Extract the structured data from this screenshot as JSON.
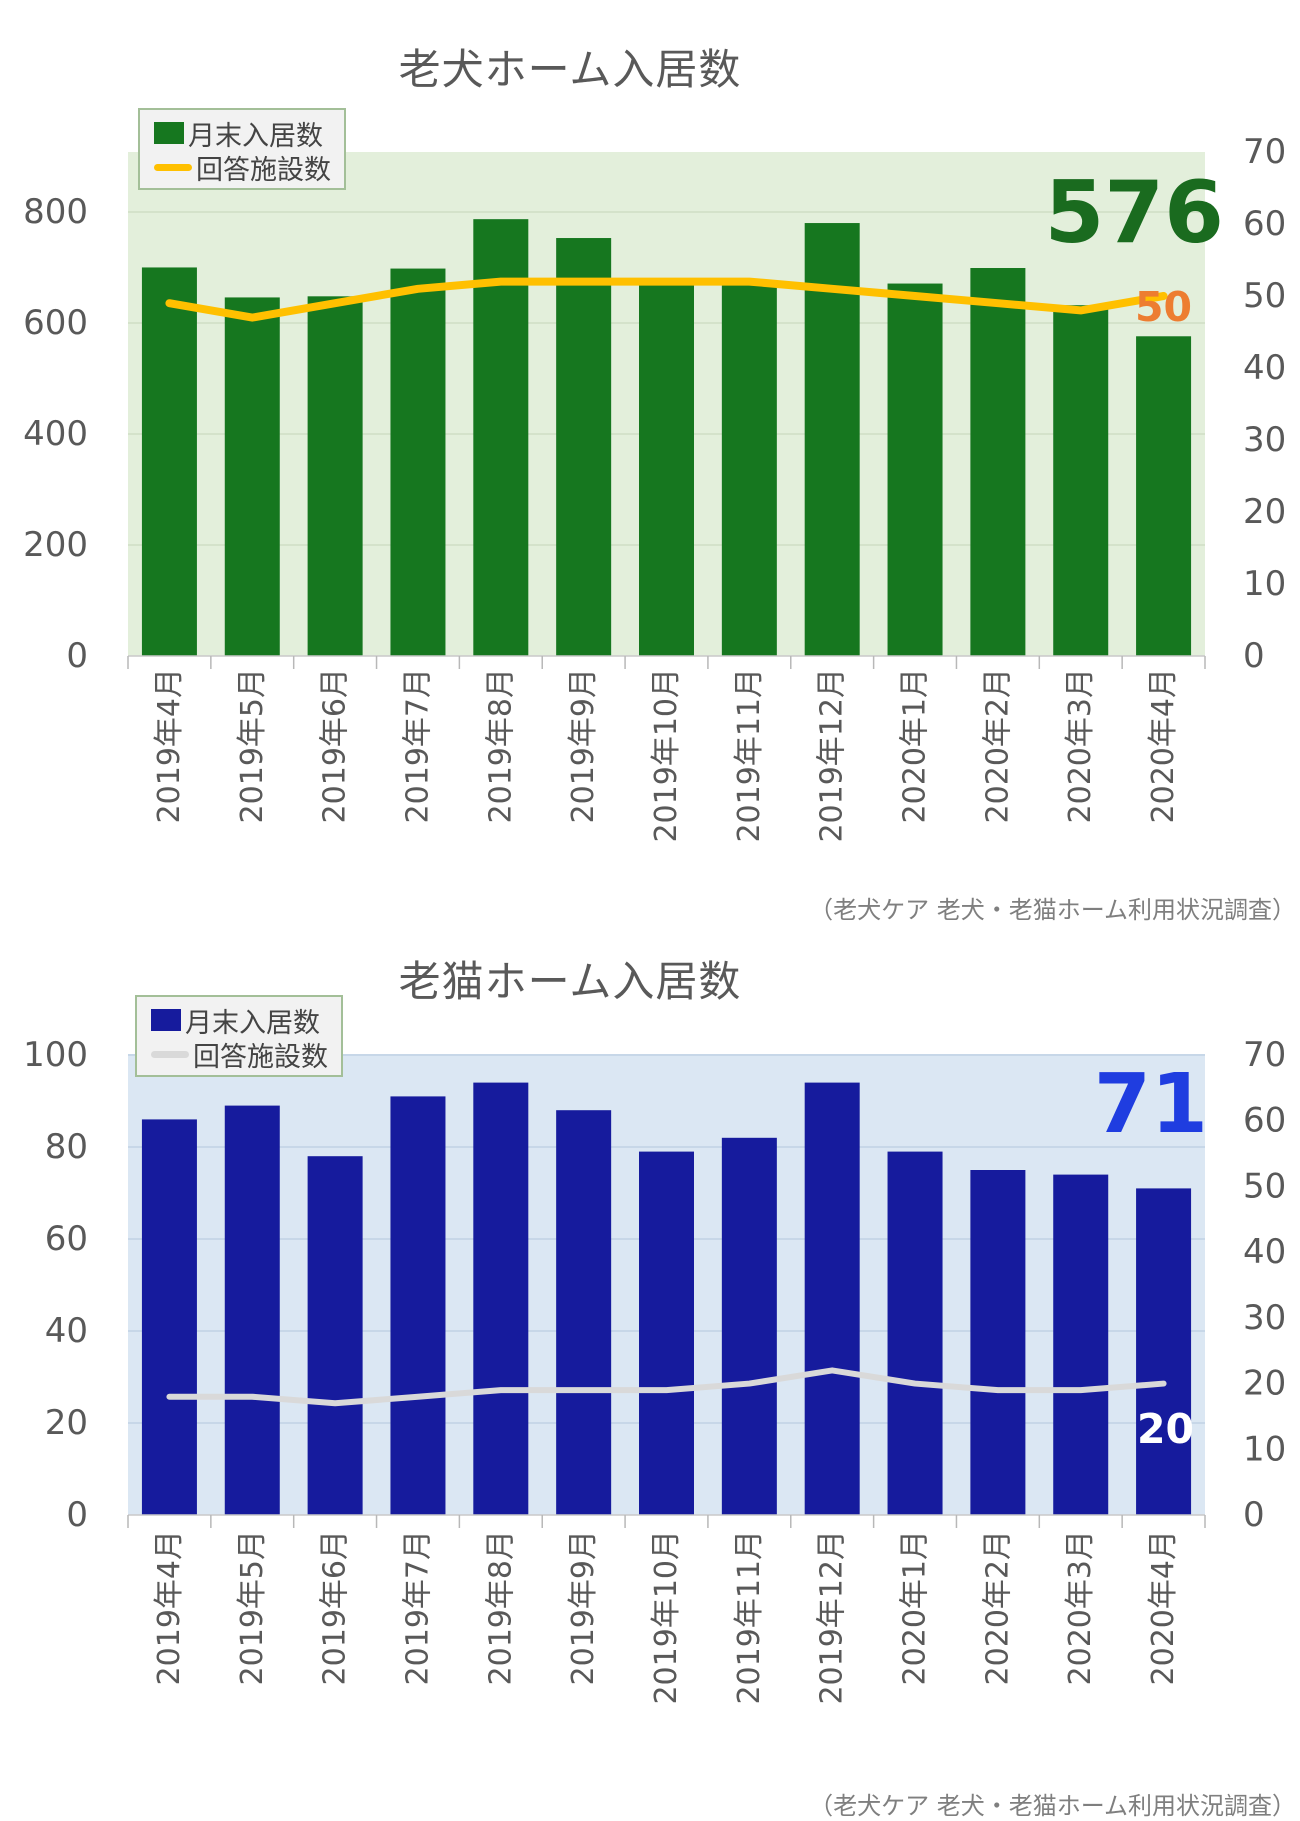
{
  "page": {
    "background": "#ffffff"
  },
  "charts": [
    {
      "title": "老犬ホーム入居数",
      "legend": {
        "bar_label": "月末入居数",
        "line_label": "回答施設数"
      },
      "annotations": {
        "bar_value": "576",
        "bar_value_color": "#1a6b1f",
        "line_value": "50",
        "line_value_color": "#ed7d31"
      },
      "source": "（老犬ケア 老犬・老猫ホーム利用状況調査）",
      "chart_data": {
        "type": "bar+line",
        "categories": [
          "2019年4月",
          "2019年5月",
          "2019年6月",
          "2019年7月",
          "2019年8月",
          "2019年9月",
          "2019年10月",
          "2019年11月",
          "2019年12月",
          "2020年1月",
          "2020年2月",
          "2020年3月",
          "2020年4月"
        ],
        "series": [
          {
            "name": "月末入居数",
            "type": "bar",
            "axis": "left",
            "color": "#16771f",
            "values": [
              700,
              646,
              648,
              698,
              787,
              753,
              679,
              677,
              780,
              671,
              699,
              632,
              576
            ]
          },
          {
            "name": "回答施設数",
            "type": "line",
            "axis": "right",
            "color": "#ffc000",
            "values": [
              49,
              47,
              49,
              51,
              52,
              52,
              52,
              52,
              51,
              50,
              49,
              48,
              50
            ]
          }
        ],
        "left_axis": {
          "ticks": [
            0,
            200,
            400,
            600,
            800
          ],
          "range": [
            0,
            908
          ]
        },
        "right_axis": {
          "ticks": [
            0,
            10,
            20,
            30,
            40,
            50,
            60,
            70
          ],
          "range": [
            0,
            70
          ]
        },
        "axis_label_color": "#595959",
        "plot_bg": "#e3efdb",
        "grid": "on",
        "grid_color": "#d4e2ca",
        "legend_position": "top-left"
      }
    },
    {
      "title": "老猫ホーム入居数",
      "legend": {
        "bar_label": "月末入居数",
        "line_label": "回答施設数"
      },
      "annotations": {
        "bar_value": "71",
        "bar_value_color": "#1f3de0",
        "line_value": "20",
        "line_value_color": "#ffffff"
      },
      "source": "（老犬ケア 老犬・老猫ホーム利用状況調査）",
      "chart_data": {
        "type": "bar+line",
        "categories": [
          "2019年4月",
          "2019年5月",
          "2019年6月",
          "2019年7月",
          "2019年8月",
          "2019年9月",
          "2019年10月",
          "2019年11月",
          "2019年12月",
          "2020年1月",
          "2020年2月",
          "2020年3月",
          "2020年4月"
        ],
        "series": [
          {
            "name": "月末入居数",
            "type": "bar",
            "axis": "left",
            "color": "#161b9d",
            "values": [
              86,
              89,
              78,
              91,
              94,
              88,
              79,
              82,
              94,
              79,
              75,
              74,
              71
            ]
          },
          {
            "name": "回答施設数",
            "type": "line",
            "axis": "right",
            "color": "#d9d9d9",
            "values": [
              18,
              18,
              17,
              18,
              19,
              19,
              19,
              20,
              22,
              20,
              19,
              19,
              20
            ]
          }
        ],
        "left_axis": {
          "ticks": [
            0,
            20,
            40,
            60,
            80,
            100
          ],
          "range": [
            0,
            100
          ]
        },
        "right_axis": {
          "ticks": [
            0,
            10,
            20,
            30,
            40,
            50,
            60,
            70
          ],
          "range": [
            0,
            70
          ]
        },
        "axis_label_color": "#595959",
        "plot_bg": "#dbe7f3",
        "grid": "on",
        "grid_color": "#c7d7e8",
        "legend_position": "top-left"
      }
    }
  ]
}
